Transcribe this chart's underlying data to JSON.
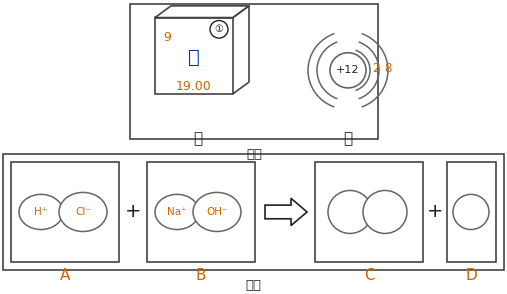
{
  "title1": "图一",
  "title2": "图二",
  "element_number": "9",
  "element_circle_label": "①",
  "element_name": "氟",
  "element_mass": "19.00",
  "atom_label": "+12",
  "electron_shells_2": "2",
  "electron_shells_8": "8",
  "label_jia": "甲",
  "label_yi": "乙",
  "label_A": "A",
  "label_B": "B",
  "label_C": "C",
  "label_D": "D",
  "color_orange": "#CC6600",
  "color_blue": "#0033CC",
  "color_dark": "#222222",
  "color_gray": "#666666",
  "bg_color": "#FFFFFF",
  "border_color": "#444444",
  "ion_H": "H⁺",
  "ion_Cl": "Cl⁻",
  "ion_Na": "Na⁺",
  "ion_OH": "OH⁻"
}
